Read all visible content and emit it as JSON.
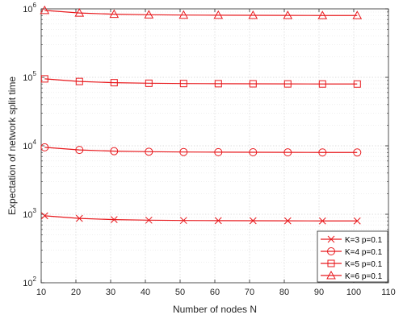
{
  "chart_data": {
    "type": "line",
    "xlabel": "Number of nodes N",
    "ylabel": "Expectation of network split time",
    "x": [
      11,
      21,
      31,
      41,
      51,
      61,
      71,
      81,
      91,
      101
    ],
    "xlim": [
      10,
      110
    ],
    "xticks": [
      10,
      20,
      30,
      40,
      50,
      60,
      70,
      80,
      90,
      100,
      110
    ],
    "ylim": [
      100,
      1000000
    ],
    "yscale": "log",
    "yticks": [
      {
        "value": 100,
        "base": "10",
        "exp": "2"
      },
      {
        "value": 1000,
        "base": "10",
        "exp": "3"
      },
      {
        "value": 10000,
        "base": "10",
        "exp": "4"
      },
      {
        "value": 100000,
        "base": "10",
        "exp": "5"
      },
      {
        "value": 1000000,
        "base": "10",
        "exp": "6"
      }
    ],
    "grid": true,
    "legend_position": "bottom-right",
    "series_color": "#e8191d",
    "series": [
      {
        "name": "K=3 p=0.1",
        "marker": "x",
        "values": [
          950,
          870,
          835,
          820,
          812,
          808,
          805,
          802,
          800,
          799
        ]
      },
      {
        "name": "K=4 p=0.1",
        "marker": "circle",
        "values": [
          9500,
          8700,
          8350,
          8200,
          8120,
          8080,
          8050,
          8020,
          8000,
          7990
        ]
      },
      {
        "name": "K=5 p=0.1",
        "marker": "square",
        "values": [
          95000,
          87000,
          83500,
          82000,
          81200,
          80800,
          80500,
          80200,
          80000,
          79900
        ]
      },
      {
        "name": "K=6 p=0.1",
        "marker": "triangle",
        "values": [
          950000,
          870000,
          835000,
          820000,
          812000,
          808000,
          805000,
          802000,
          800000,
          799000
        ]
      }
    ]
  }
}
